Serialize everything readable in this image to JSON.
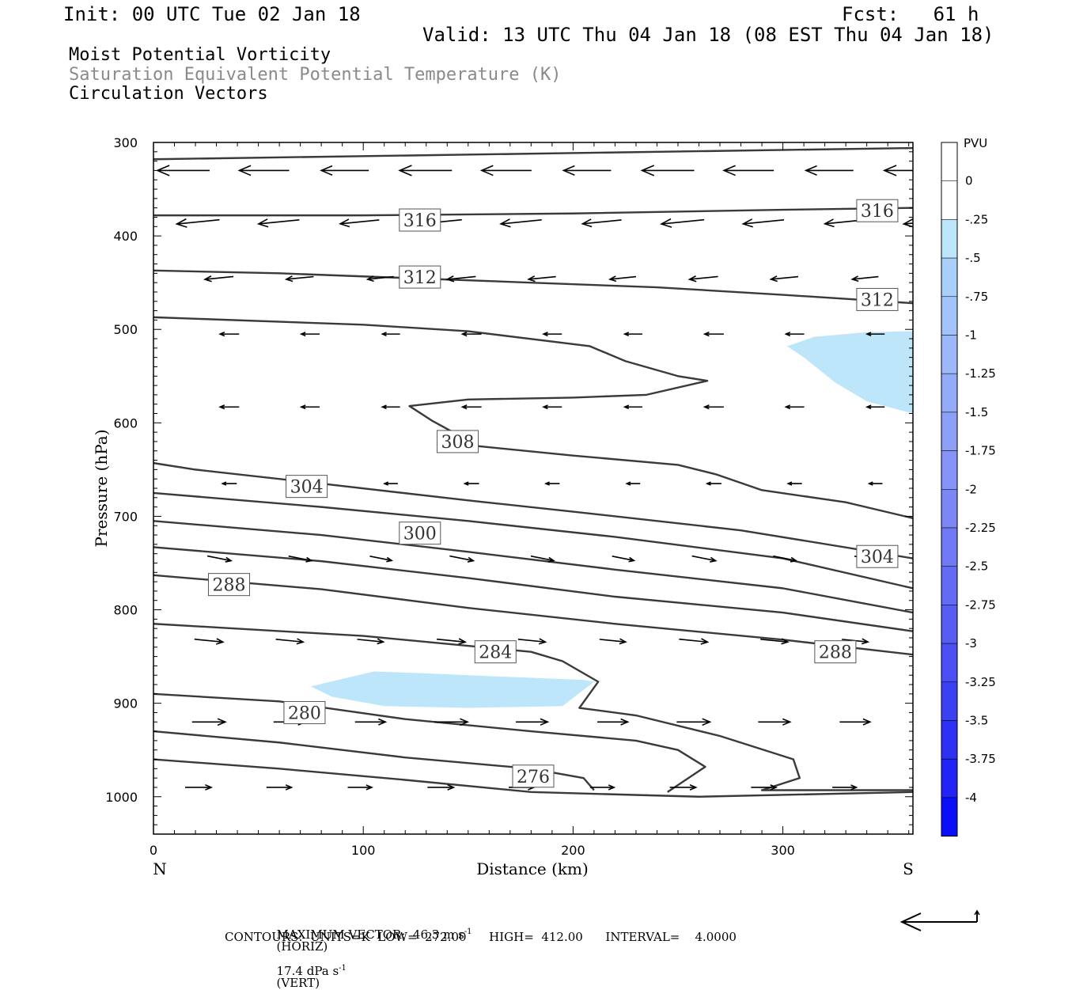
{
  "header": {
    "init": "Init: 00 UTC Tue 02 Jan 18",
    "fcst": "Fcst:   61 h",
    "valid": "Valid: 13 UTC Thu 04 Jan 18 (08 EST Thu 04 Jan 18)"
  },
  "titles": {
    "line1": "Moist Potential Vorticity",
    "line2": "Saturation Equivalent Potential Temperature (K)",
    "line3": "Circulation Vectors"
  },
  "footer": {
    "max_vector": "MAXIMUM VECTOR:  46.3 m s",
    "horiz": "(HORIZ)",
    "vert_value": "17.4 dPa s",
    "vert": "(VERT)",
    "exp": "-1",
    "contours": "CONTOURS:  UNITS=K  LOW=  272.00      HIGH=  412.00      INTERVAL=    4.0000"
  },
  "colors": {
    "contour": "#3a3a3a",
    "fill_light_blue": "#bde6fb",
    "frame": "#000000"
  },
  "chart_data": {
    "type": "contour-cross-section",
    "xlabel": "Distance (km)",
    "ylabel": "Pressure (hPa)",
    "xlim": [
      0,
      362
    ],
    "ylim": [
      1040,
      300
    ],
    "x_ticks": [
      0,
      100,
      200,
      300
    ],
    "y_ticks": [
      300,
      400,
      500,
      600,
      700,
      800,
      900,
      1000
    ],
    "x_end_labels": {
      "left": "N",
      "right": "S"
    },
    "colorbar": {
      "title": "PVU",
      "levels": [
        "0",
        "-.25",
        "-.5",
        "-.75",
        "-1",
        "-1.25",
        "-1.5",
        "-1.75",
        "-2",
        "-2.25",
        "-2.5",
        "-2.75",
        "-3",
        "-3.25",
        "-3.5",
        "-3.75",
        "-4"
      ],
      "colors": [
        "#ffffff",
        "#ffffff",
        "#bde6fb",
        "#a8d0fb",
        "#a3c4fa",
        "#9cb8f9",
        "#94acf8",
        "#8da0f7",
        "#8594f6",
        "#7c86f5",
        "#7078f4",
        "#636af3",
        "#575cf3",
        "#4a4ef3",
        "#3c40f3",
        "#2e30f4",
        "#2224f5",
        "#0b0ff8"
      ]
    },
    "contour_labels": [
      {
        "text": "316",
        "x": 127,
        "p": 383
      },
      {
        "text": "316",
        "x": 345,
        "p": 373
      },
      {
        "text": "312",
        "x": 127,
        "p": 444
      },
      {
        "text": "312",
        "x": 345,
        "p": 468
      },
      {
        "text": "308",
        "x": 145,
        "p": 620
      },
      {
        "text": "304",
        "x": 73,
        "p": 668
      },
      {
        "text": "304",
        "x": 345,
        "p": 743
      },
      {
        "text": "300",
        "x": 127,
        "p": 718
      },
      {
        "text": "288",
        "x": 36,
        "p": 773
      },
      {
        "text": "288",
        "x": 325,
        "p": 845
      },
      {
        "text": "284",
        "x": 163,
        "p": 845
      },
      {
        "text": "280",
        "x": 72,
        "p": 910
      },
      {
        "text": "276",
        "x": 181,
        "p": 978
      }
    ],
    "contours": [
      [
        [
          0,
          318
        ],
        [
          362,
          306
        ]
      ],
      [
        [
          0,
          378
        ],
        [
          100,
          378
        ],
        [
          200,
          376
        ],
        [
          300,
          372
        ],
        [
          362,
          370
        ]
      ],
      [
        [
          0,
          437
        ],
        [
          60,
          440
        ],
        [
          120,
          445
        ],
        [
          180,
          450
        ],
        [
          240,
          455
        ],
        [
          300,
          463
        ],
        [
          362,
          472
        ]
      ],
      [
        [
          0,
          487
        ],
        [
          100,
          495
        ],
        [
          150,
          502
        ],
        [
          208,
          518
        ],
        [
          225,
          534
        ],
        [
          250,
          550
        ],
        [
          264,
          555
        ],
        [
          235,
          570
        ],
        [
          200,
          573
        ],
        [
          150,
          575
        ],
        [
          122,
          582
        ],
        [
          133,
          598
        ],
        [
          155,
          625
        ],
        [
          200,
          635
        ],
        [
          250,
          645
        ],
        [
          268,
          655
        ],
        [
          290,
          672
        ],
        [
          330,
          685
        ],
        [
          362,
          702
        ]
      ],
      [
        [
          0,
          643
        ],
        [
          20,
          650
        ],
        [
          80,
          665
        ],
        [
          150,
          683
        ],
        [
          200,
          695
        ],
        [
          280,
          715
        ],
        [
          362,
          745
        ]
      ],
      [
        [
          0,
          675
        ],
        [
          80,
          690
        ],
        [
          150,
          705
        ],
        [
          220,
          722
        ],
        [
          300,
          745
        ],
        [
          362,
          777
        ]
      ],
      [
        [
          0,
          705
        ],
        [
          80,
          720
        ],
        [
          150,
          738
        ],
        [
          220,
          757
        ],
        [
          300,
          777
        ],
        [
          362,
          803
        ]
      ],
      [
        [
          0,
          733
        ],
        [
          80,
          748
        ],
        [
          150,
          766
        ],
        [
          220,
          786
        ],
        [
          300,
          803
        ],
        [
          362,
          823
        ]
      ],
      [
        [
          0,
          763
        ],
        [
          80,
          778
        ],
        [
          150,
          798
        ],
        [
          220,
          815
        ],
        [
          300,
          832
        ],
        [
          362,
          848
        ]
      ],
      [
        [
          0,
          815
        ],
        [
          100,
          828
        ],
        [
          180,
          845
        ],
        [
          195,
          855
        ],
        [
          212,
          877
        ],
        [
          203,
          905
        ],
        [
          230,
          913
        ],
        [
          270,
          935
        ],
        [
          305,
          960
        ],
        [
          308,
          980
        ],
        [
          290,
          993
        ],
        [
          362,
          993
        ]
      ],
      [
        [
          0,
          890
        ],
        [
          60,
          898
        ],
        [
          120,
          917
        ],
        [
          180,
          930
        ],
        [
          230,
          940
        ],
        [
          250,
          950
        ],
        [
          263,
          968
        ],
        [
          245,
          995
        ]
      ],
      [
        [
          0,
          930
        ],
        [
          60,
          942
        ],
        [
          120,
          958
        ],
        [
          180,
          970
        ],
        [
          205,
          980
        ],
        [
          210,
          993
        ]
      ],
      [
        [
          0,
          960
        ],
        [
          60,
          970
        ],
        [
          120,
          982
        ],
        [
          180,
          995
        ],
        [
          260,
          1000
        ],
        [
          362,
          995
        ]
      ]
    ],
    "filled_regions": [
      {
        "level": "-.25",
        "points": [
          [
            75,
            882
          ],
          [
            105,
            866
          ],
          [
            130,
            868
          ],
          [
            160,
            871
          ],
          [
            205,
            875
          ],
          [
            210,
            877
          ],
          [
            195,
            903
          ],
          [
            150,
            905
          ],
          [
            110,
            903
          ],
          [
            85,
            893
          ]
        ]
      },
      {
        "level": "-.25",
        "points": [
          [
            302,
            518
          ],
          [
            315,
            508
          ],
          [
            340,
            503
          ],
          [
            362,
            502
          ],
          [
            362,
            590
          ],
          [
            340,
            577
          ],
          [
            325,
            557
          ],
          [
            310,
            530
          ]
        ]
      }
    ]
  }
}
